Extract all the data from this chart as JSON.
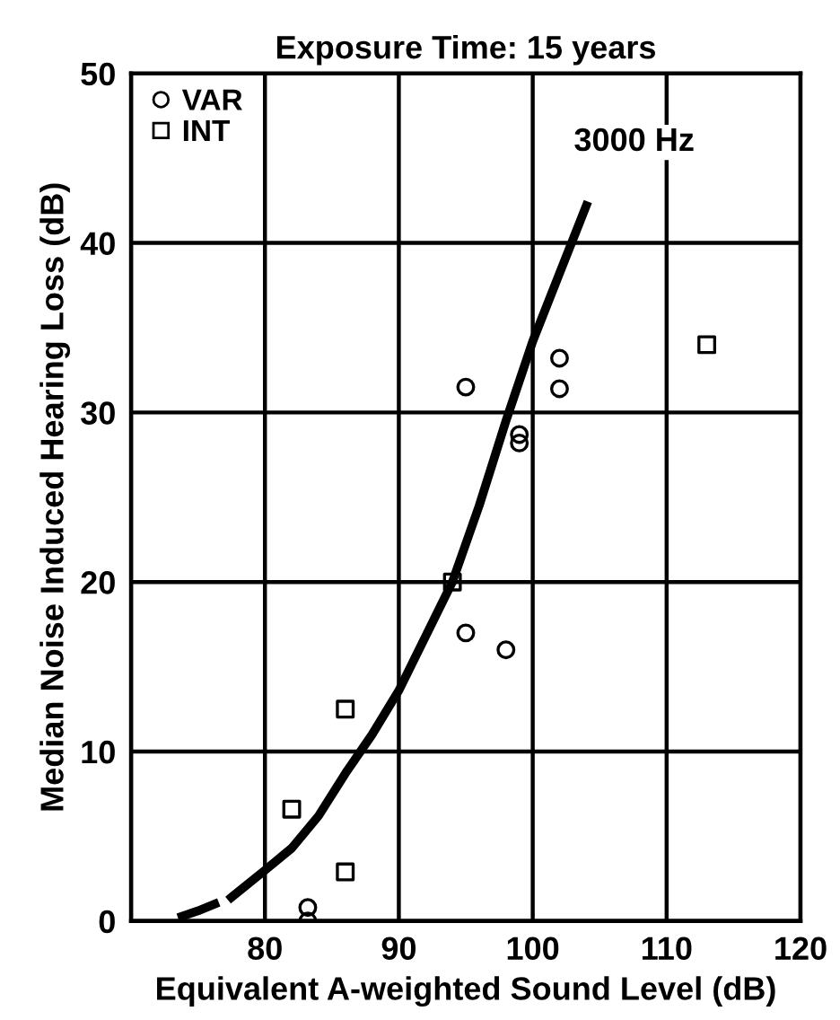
{
  "chart_data": {
    "type": "scatter",
    "title": "Exposure Time: 15 years",
    "xlabel": "Equivalent A-weighted Sound Level (dB)",
    "ylabel": "Median Noise Induced Hearing Loss (dB)",
    "xlim": [
      70,
      120
    ],
    "xticks": [
      {
        "value": 70,
        "label": null
      },
      80,
      90,
      100,
      110,
      120
    ],
    "ylim": [
      0,
      50
    ],
    "yticks": [
      0,
      10,
      20,
      30,
      40,
      50
    ],
    "grid": true,
    "legend": "top left",
    "series": [
      {
        "name": "VAR",
        "marker": "circle",
        "color": "#000000",
        "x": [
          95,
          102,
          102,
          99,
          99,
          95,
          98,
          83.2,
          83.2
        ],
        "values": [
          31.5,
          33.2,
          31.4,
          28.7,
          28.2,
          17,
          16,
          0.8,
          0
        ]
      },
      {
        "name": "INT",
        "marker": "square",
        "color": "#000000",
        "x": [
          113,
          94,
          86,
          82,
          86
        ],
        "values": [
          34,
          20,
          12.5,
          6.6,
          2.9
        ]
      },
      {
        "type": "line",
        "line_style": "dashed",
        "color": "#000000",
        "x": [
          73.5,
          75,
          77.5
        ],
        "values": [
          0.2,
          0.6,
          1.4
        ]
      },
      {
        "type": "line",
        "line_style": "solid",
        "color": "#000000",
        "x": [
          77.5,
          80,
          82,
          84,
          86,
          88,
          90,
          92,
          94,
          96,
          98,
          100,
          102,
          104
        ],
        "values": [
          1.4,
          3.0,
          4.3,
          6.2,
          8.7,
          11,
          13.6,
          16.8,
          20,
          24.5,
          29.5,
          34.2,
          38.2,
          42.2
        ]
      }
    ],
    "annotations": [
      {
        "text": "3000 Hz",
        "x": 104,
        "y": 42.2
      }
    ]
  }
}
